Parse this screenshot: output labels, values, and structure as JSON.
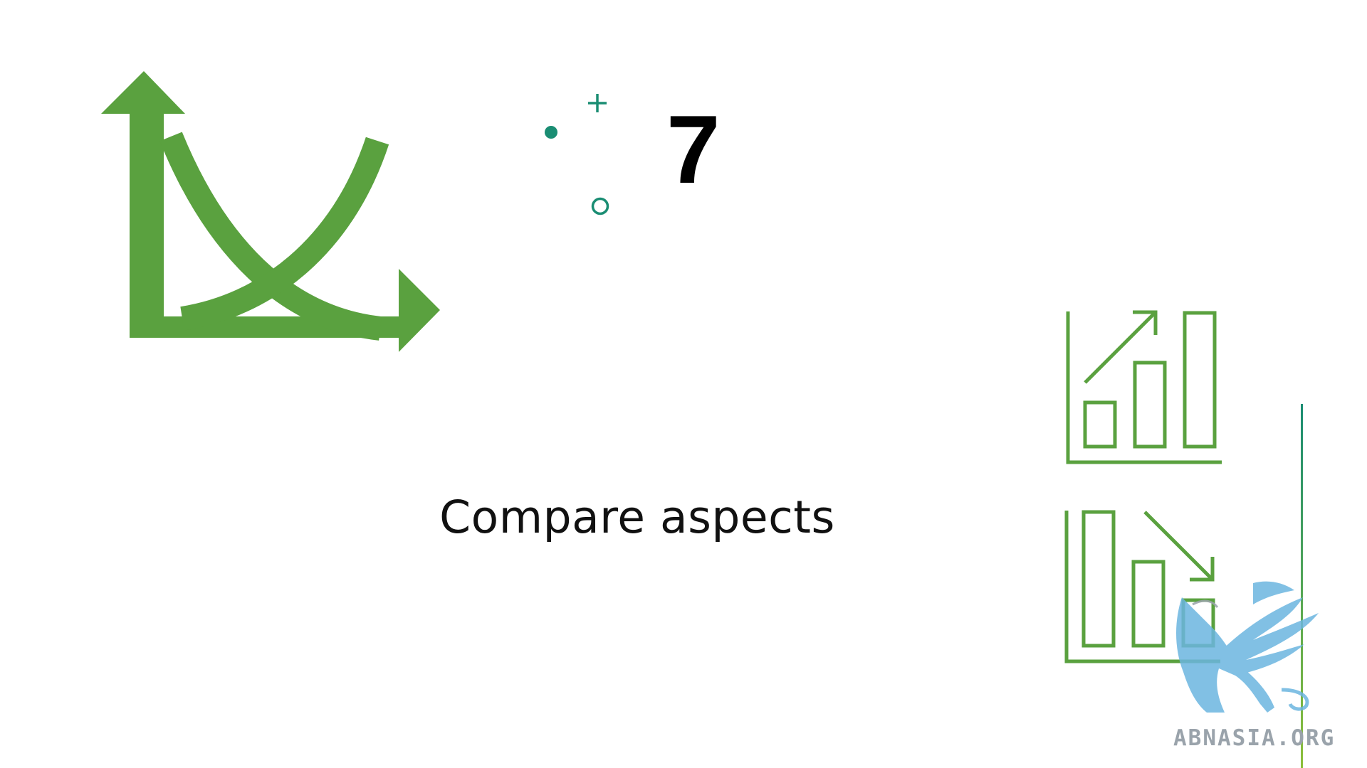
{
  "slide": {
    "number": "7",
    "title": "Compare aspects"
  },
  "watermark": {
    "text": "ABNASIA.ORG",
    "icon": "griffin-logo"
  },
  "icons": {
    "main": "curves-crossing-axes-icon",
    "chart_up": "bar-chart-increase-icon",
    "chart_down": "bar-chart-decrease-icon",
    "decor": [
      "filled-dot-icon",
      "plus-icon",
      "hollow-circle-icon"
    ]
  },
  "colors": {
    "green": "#5aa13f",
    "teal": "#1a8d73",
    "watermark_blue": "#6cb6e0",
    "watermark_text": "#9aa3ab",
    "divider_top": "#1a8d73",
    "divider_bottom": "#8dbf3a"
  }
}
